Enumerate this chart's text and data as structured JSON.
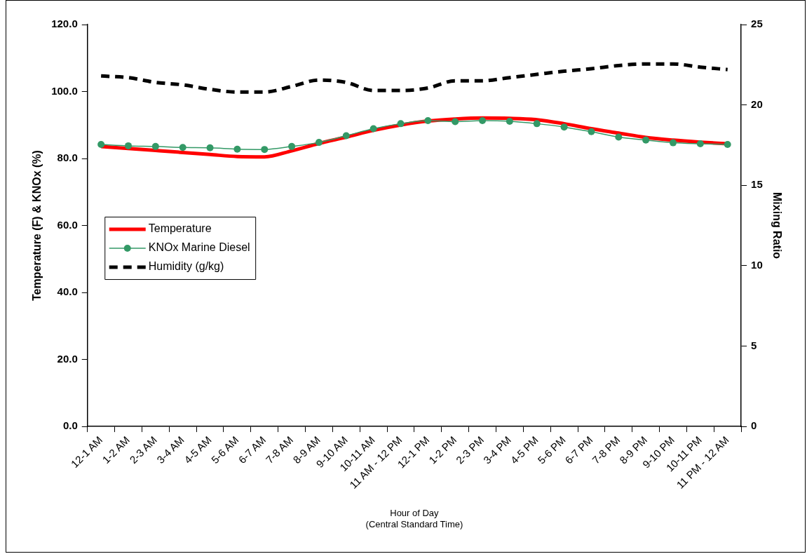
{
  "chart_data": {
    "type": "line",
    "xlabel": "Hour of Day\n(Central Standard Time)",
    "ylabel": "Temperature (F) & KNOx (%)",
    "y2label": "Mixing Ratio",
    "categories": [
      "12-1 AM",
      "1-2 AM",
      "2-3 AM",
      "3-4 AM",
      "4-5 AM",
      "5-6 AM",
      "6-7 AM",
      "7-8 AM",
      "8-9 AM",
      "9-10 AM",
      "10-11 AM",
      "11 AM - 12 PM",
      "12-1 PM",
      "1-2 PM",
      "2-3 PM",
      "3-4 PM",
      "4-5 PM",
      "5-6 PM",
      "6-7 PM",
      "7-8 PM",
      "8-9 PM",
      "9-10 PM",
      "10-11 PM",
      "11 PM - 12 AM"
    ],
    "series": [
      {
        "name": "Temperature",
        "color": "#ff0000",
        "marker": "none",
        "line_style": "solid",
        "values": [
          83.6,
          83.0,
          82.4,
          81.8,
          81.2,
          80.6,
          80.5,
          82.3,
          84.5,
          86.4,
          88.4,
          90.0,
          91.2,
          91.8,
          92.1,
          92.0,
          91.6,
          90.4,
          88.9,
          87.6,
          86.3,
          85.5,
          84.9,
          84.4
        ]
      },
      {
        "name": "KNOx Marine Diesel",
        "color": "#339966",
        "marker": "circle",
        "line_style": "solid",
        "values": [
          84.2,
          83.8,
          83.6,
          83.3,
          83.2,
          82.8,
          82.7,
          83.6,
          84.8,
          86.8,
          88.9,
          90.4,
          91.3,
          91.0,
          91.3,
          91.1,
          90.4,
          89.4,
          88.0,
          86.4,
          85.5,
          84.7,
          84.4,
          84.2
        ]
      },
      {
        "name": "Humidity (g/kg)",
        "color": "#000000",
        "marker": "none",
        "line_style": "dashed",
        "axis": "y2",
        "values": [
          21.8,
          21.7,
          21.4,
          21.25,
          20.97,
          20.8,
          20.8,
          21.15,
          21.55,
          21.4,
          20.9,
          20.9,
          21.05,
          21.5,
          21.5,
          21.7,
          21.9,
          22.1,
          22.25,
          22.45,
          22.55,
          22.55,
          22.35,
          22.2
        ]
      }
    ],
    "ylim": [
      0,
      120
    ],
    "yticks": [
      {
        "value": 0,
        "label": "0.0"
      },
      {
        "value": 20,
        "label": "20.0"
      },
      {
        "value": 40,
        "label": "40.0"
      },
      {
        "value": 60,
        "label": "60.0"
      },
      {
        "value": 80,
        "label": "80.0"
      },
      {
        "value": 100,
        "label": "100.0"
      },
      {
        "value": 120,
        "label": "120.0"
      }
    ],
    "y2lim": [
      0,
      25
    ],
    "y2ticks": [
      0,
      5,
      10,
      15,
      20,
      25
    ],
    "grid": false,
    "legend": "left"
  }
}
